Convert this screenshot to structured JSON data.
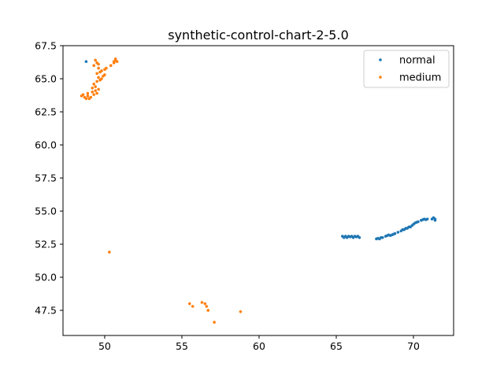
{
  "chart_data": {
    "type": "scatter",
    "title": "synthetic-control-chart-2-5.0",
    "xlabel": "",
    "ylabel": "",
    "xlim": [
      47.3,
      72.6
    ],
    "ylim": [
      45.6,
      67.5
    ],
    "x_ticks": [
      50,
      55,
      60,
      65,
      70
    ],
    "y_ticks": [
      47.5,
      50.0,
      52.5,
      55.0,
      57.5,
      60.0,
      62.5,
      65.0,
      67.5
    ],
    "x_tick_labels": [
      "50",
      "55",
      "60",
      "65",
      "70"
    ],
    "y_tick_labels": [
      "47.5",
      "50.0",
      "52.5",
      "55.0",
      "57.5",
      "60.0",
      "62.5",
      "65.0",
      "67.5"
    ],
    "grid": false,
    "legend_position": "upper right",
    "series": [
      {
        "name": "normal",
        "color": "#1f77b4",
        "points": [
          [
            48.8,
            66.3
          ],
          [
            65.4,
            53.1
          ],
          [
            65.5,
            53.0
          ],
          [
            65.6,
            53.1
          ],
          [
            65.7,
            53.0
          ],
          [
            65.8,
            53.1
          ],
          [
            65.9,
            53.05
          ],
          [
            66.0,
            53.1
          ],
          [
            66.1,
            53.0
          ],
          [
            66.2,
            53.1
          ],
          [
            66.3,
            53.05
          ],
          [
            66.4,
            53.1
          ],
          [
            66.5,
            53.0
          ],
          [
            67.6,
            52.9
          ],
          [
            67.7,
            52.95
          ],
          [
            67.8,
            52.9
          ],
          [
            67.9,
            53.0
          ],
          [
            68.0,
            53.0
          ],
          [
            68.2,
            53.1
          ],
          [
            68.3,
            53.15
          ],
          [
            68.4,
            53.2
          ],
          [
            68.5,
            53.15
          ],
          [
            68.6,
            53.2
          ],
          [
            68.7,
            53.25
          ],
          [
            68.8,
            53.3
          ],
          [
            69.0,
            53.4
          ],
          [
            69.2,
            53.5
          ],
          [
            69.3,
            53.6
          ],
          [
            69.4,
            53.6
          ],
          [
            69.5,
            53.7
          ],
          [
            69.6,
            53.7
          ],
          [
            69.7,
            53.8
          ],
          [
            69.8,
            53.8
          ],
          [
            69.9,
            53.9
          ],
          [
            70.0,
            54.0
          ],
          [
            70.1,
            54.1
          ],
          [
            70.2,
            54.15
          ],
          [
            70.3,
            54.2
          ],
          [
            70.5,
            54.3
          ],
          [
            70.6,
            54.35
          ],
          [
            70.7,
            54.4
          ],
          [
            70.8,
            54.35
          ],
          [
            70.9,
            54.4
          ],
          [
            71.2,
            54.4
          ],
          [
            71.3,
            54.5
          ],
          [
            71.4,
            54.4
          ],
          [
            71.4,
            54.3
          ]
        ]
      },
      {
        "name": "medium",
        "color": "#ff7f0e",
        "points": [
          [
            48.6,
            63.8
          ],
          [
            48.7,
            63.6
          ],
          [
            48.8,
            63.5
          ],
          [
            48.9,
            63.7
          ],
          [
            49.0,
            63.5
          ],
          [
            49.1,
            63.6
          ],
          [
            48.5,
            63.7
          ],
          [
            48.9,
            63.9
          ],
          [
            49.2,
            64.0
          ],
          [
            49.3,
            63.8
          ],
          [
            49.4,
            64.1
          ],
          [
            49.5,
            63.9
          ],
          [
            49.2,
            64.3
          ],
          [
            49.4,
            64.4
          ],
          [
            49.6,
            64.2
          ],
          [
            49.3,
            64.6
          ],
          [
            49.5,
            64.8
          ],
          [
            49.7,
            64.9
          ],
          [
            49.6,
            65.1
          ],
          [
            49.8,
            65.0
          ],
          [
            49.9,
            65.2
          ],
          [
            50.0,
            65.3
          ],
          [
            49.5,
            65.4
          ],
          [
            49.7,
            65.5
          ],
          [
            49.6,
            65.8
          ],
          [
            49.8,
            65.6
          ],
          [
            50.0,
            65.7
          ],
          [
            50.1,
            65.8
          ],
          [
            49.3,
            66.0
          ],
          [
            49.5,
            66.2
          ],
          [
            49.4,
            66.4
          ],
          [
            49.6,
            66.1
          ],
          [
            50.4,
            66.0
          ],
          [
            50.6,
            66.3
          ],
          [
            50.7,
            66.4
          ],
          [
            50.8,
            66.3
          ],
          [
            50.7,
            66.5
          ],
          [
            50.6,
            66.2
          ],
          [
            50.3,
            51.9
          ],
          [
            55.5,
            48.0
          ],
          [
            55.7,
            47.8
          ],
          [
            56.3,
            48.1
          ],
          [
            56.5,
            48.0
          ],
          [
            56.6,
            47.8
          ],
          [
            56.7,
            47.5
          ],
          [
            57.1,
            46.6
          ],
          [
            58.8,
            47.4
          ]
        ]
      }
    ]
  }
}
